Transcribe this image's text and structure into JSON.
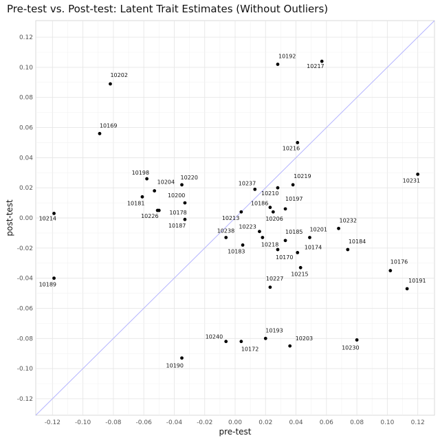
{
  "chart_data": {
    "type": "scatter",
    "title": "Pre-test vs. Post-test: Latent Trait Estimates (Without Outliers)",
    "xlabel": "pre-test",
    "ylabel": "post-test",
    "xlim": [
      -0.131,
      0.131
    ],
    "ylim": [
      -0.131,
      0.131
    ],
    "x_ticks": [
      "-0.12",
      "-0.10",
      "-0.08",
      "-0.06",
      "-0.04",
      "-0.02",
      "0.00",
      "0.02",
      "0.04",
      "0.06",
      "0.08",
      "0.10",
      "0.12"
    ],
    "y_ticks": [
      "-0.12",
      "-0.10",
      "-0.08",
      "-0.06",
      "-0.04",
      "-0.02",
      "0.00",
      "0.02",
      "0.04",
      "0.06",
      "0.08",
      "0.10",
      "0.12"
    ],
    "grid": true,
    "reference_line": "y = x",
    "reference_line_color": "#b3b3ff",
    "point_color": "#000000",
    "points": [
      {
        "id": "10202",
        "x": -0.082,
        "y": 0.089
      },
      {
        "id": "10169",
        "x": -0.089,
        "y": 0.056
      },
      {
        "id": "10192",
        "x": 0.028,
        "y": 0.102
      },
      {
        "id": "10217",
        "x": 0.057,
        "y": 0.104
      },
      {
        "id": "10216",
        "x": 0.041,
        "y": 0.05
      },
      {
        "id": "10198",
        "x": -0.058,
        "y": 0.026
      },
      {
        "id": "10204",
        "x": -0.053,
        "y": 0.018
      },
      {
        "id": "10181",
        "x": -0.061,
        "y": 0.014
      },
      {
        "id": "10200",
        "x": -0.033,
        "y": 0.01
      },
      {
        "id": "10220",
        "x": -0.035,
        "y": 0.022
      },
      {
        "id": "10178",
        "x": -0.05,
        "y": 0.005
      },
      {
        "id": "10226",
        "x": -0.051,
        "y": 0.005
      },
      {
        "id": "10187",
        "x": -0.033,
        "y": -0.001
      },
      {
        "id": "10214",
        "x": -0.119,
        "y": 0.003
      },
      {
        "id": "10189",
        "x": -0.119,
        "y": -0.04
      },
      {
        "id": "10237",
        "x": 0.013,
        "y": 0.019
      },
      {
        "id": "10210",
        "x": 0.028,
        "y": 0.02
      },
      {
        "id": "10219",
        "x": 0.038,
        "y": 0.022
      },
      {
        "id": "10186",
        "x": 0.023,
        "y": 0.007
      },
      {
        "id": "10197",
        "x": 0.033,
        "y": 0.006
      },
      {
        "id": "10213",
        "x": 0.004,
        "y": 0.004
      },
      {
        "id": "10206",
        "x": 0.025,
        "y": 0.004
      },
      {
        "id": "10231",
        "x": 0.12,
        "y": 0.029
      },
      {
        "id": "10238",
        "x": -0.006,
        "y": -0.013
      },
      {
        "id": "10223",
        "x": 0.016,
        "y": -0.009
      },
      {
        "id": "10183",
        "x": 0.005,
        "y": -0.018
      },
      {
        "id": "10185",
        "x": 0.033,
        "y": -0.015
      },
      {
        "id": "10218",
        "x": 0.018,
        "y": -0.013
      },
      {
        "id": "10201",
        "x": 0.049,
        "y": -0.013
      },
      {
        "id": "10232",
        "x": 0.068,
        "y": -0.007
      },
      {
        "id": "10170",
        "x": 0.028,
        "y": -0.021
      },
      {
        "id": "10174",
        "x": 0.041,
        "y": -0.023
      },
      {
        "id": "10184",
        "x": 0.074,
        "y": -0.021
      },
      {
        "id": "10215",
        "x": 0.043,
        "y": -0.033
      },
      {
        "id": "10227",
        "x": 0.023,
        "y": -0.046
      },
      {
        "id": "10176",
        "x": 0.102,
        "y": -0.035
      },
      {
        "id": "10191",
        "x": 0.113,
        "y": -0.047
      },
      {
        "id": "10240",
        "x": -0.006,
        "y": -0.082
      },
      {
        "id": "10172",
        "x": 0.004,
        "y": -0.082
      },
      {
        "id": "10193",
        "x": 0.02,
        "y": -0.08
      },
      {
        "id": "10203",
        "x": 0.036,
        "y": -0.085
      },
      {
        "id": "10230",
        "x": 0.08,
        "y": -0.081
      },
      {
        "id": "10190",
        "x": -0.035,
        "y": -0.093
      }
    ]
  }
}
